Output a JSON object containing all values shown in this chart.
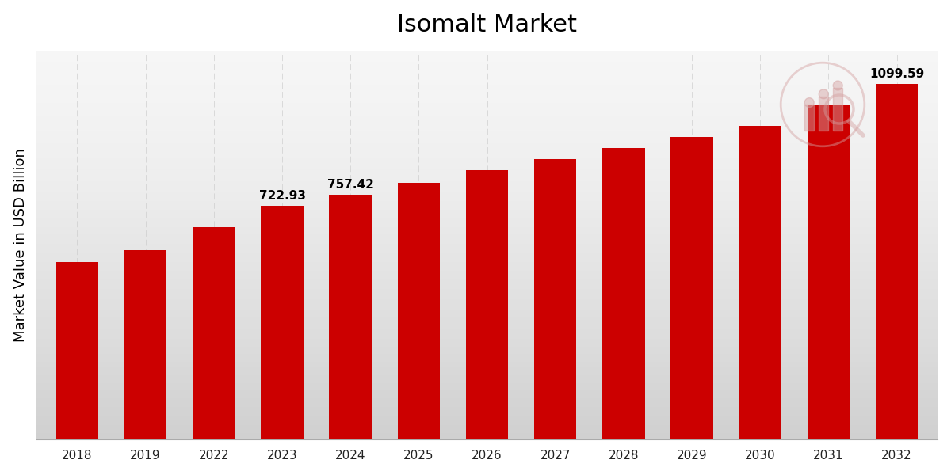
{
  "title": "Isomalt Market",
  "ylabel": "Market Value in USD Billion",
  "categories": [
    "2018",
    "2019",
    "2022",
    "2023",
    "2024",
    "2025",
    "2026",
    "2027",
    "2028",
    "2029",
    "2030",
    "2031",
    "2032"
  ],
  "values": [
    548.0,
    584.0,
    656.0,
    722.93,
    757.42,
    793.0,
    833.0,
    866.0,
    900.0,
    935.0,
    968.0,
    1032.0,
    1099.59
  ],
  "bar_color": "#cc0000",
  "label_indices": [
    3,
    4,
    12
  ],
  "label_values": [
    "722.93",
    "757.42",
    "1099.59"
  ],
  "grid_color": "#c8c8c8",
  "ylim": [
    0,
    1200
  ],
  "bar_width": 0.62,
  "title_fontsize": 22,
  "axis_label_fontsize": 13,
  "tick_fontsize": 11,
  "value_label_fontsize": 11,
  "bg_top": "#f0f0f0",
  "bg_bottom": "#e0e0e0",
  "logo_color": "#d4a0a0"
}
